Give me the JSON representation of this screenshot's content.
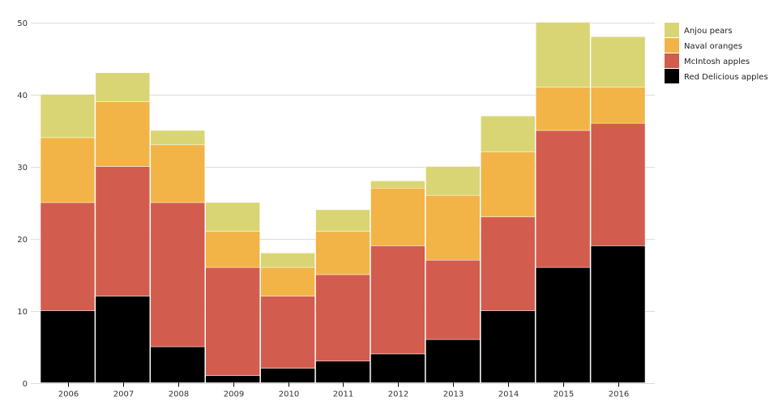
{
  "chart_data": {
    "type": "bar",
    "stacked": true,
    "title": "",
    "xlabel": "",
    "ylabel": "",
    "ylim": [
      0,
      50
    ],
    "yticks": [
      0,
      10,
      20,
      30,
      40,
      50
    ],
    "grid": true,
    "legend_position": "top-right",
    "categories": [
      "2006",
      "2007",
      "2008",
      "2009",
      "2010",
      "2011",
      "2012",
      "2013",
      "2014",
      "2015",
      "2016"
    ],
    "series": [
      {
        "name": "Red Delicious apples",
        "color": "#000000",
        "values": [
          10,
          12,
          5,
          1,
          2,
          3,
          4,
          6,
          10,
          16,
          19
        ]
      },
      {
        "name": "McIntosh apples",
        "color": "#d25c4d",
        "values": [
          15,
          18,
          20,
          15,
          10,
          12,
          15,
          11,
          13,
          19,
          17
        ]
      },
      {
        "name": "Naval oranges",
        "color": "#f2b447",
        "values": [
          9,
          9,
          8,
          5,
          4,
          6,
          8,
          9,
          9,
          6,
          5
        ]
      },
      {
        "name": "Anjou pears",
        "color": "#d9d574",
        "values": [
          6,
          4,
          2,
          4,
          2,
          3,
          1,
          4,
          5,
          9,
          7
        ]
      }
    ],
    "legend_order": [
      "Anjou pears",
      "Naval oranges",
      "McIntosh apples",
      "Red Delicious apples"
    ]
  }
}
